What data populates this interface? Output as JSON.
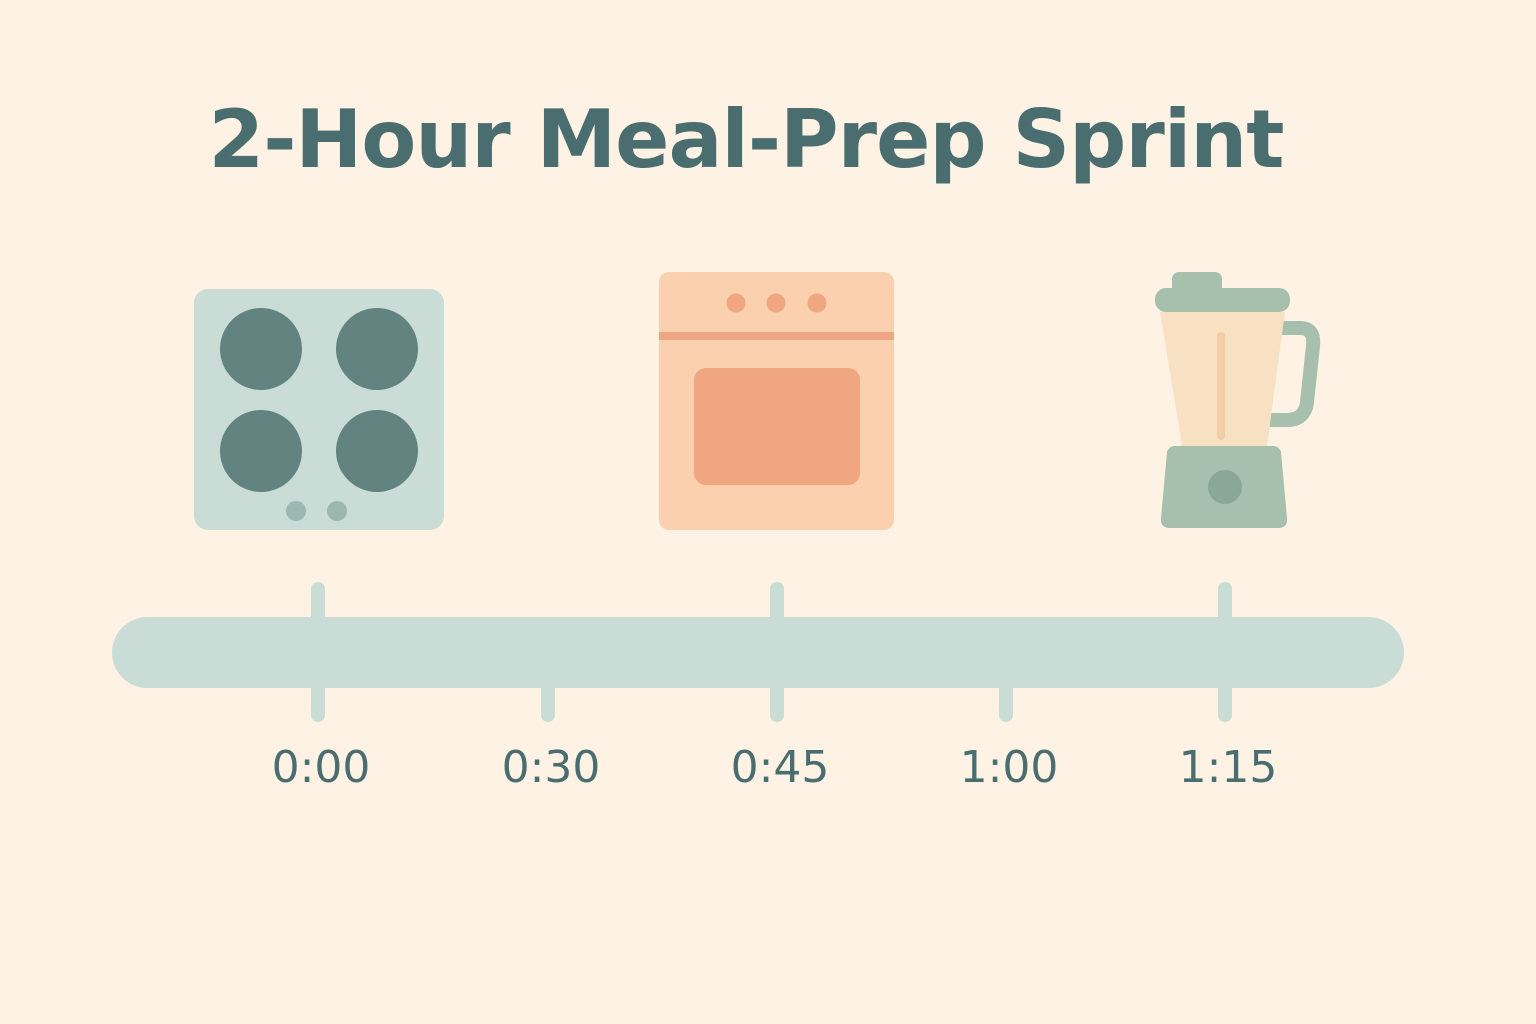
{
  "title": "2-Hour Meal-Prep Sprint",
  "colors": {
    "background": "#fdf2e4",
    "text": "#4a6e70",
    "track": "#c9ddd6",
    "stovetop_body": "#c9ddd6",
    "stovetop_burner": "#628380",
    "oven_body": "#fbd0af",
    "oven_window": "#f0a680",
    "blender_base": "#a7c0ae",
    "blender_jar": "#f8e1c3"
  },
  "timeline": {
    "ticks": [
      {
        "label": "0:00"
      },
      {
        "label": "0:30"
      },
      {
        "label": "0:45"
      },
      {
        "label": "1:00"
      },
      {
        "label": "1:15"
      }
    ]
  },
  "appliances": [
    {
      "icon": "stovetop-icon",
      "at": "0:00"
    },
    {
      "icon": "oven-icon",
      "at": "0:45"
    },
    {
      "icon": "blender-icon",
      "at": "1:15"
    }
  ]
}
